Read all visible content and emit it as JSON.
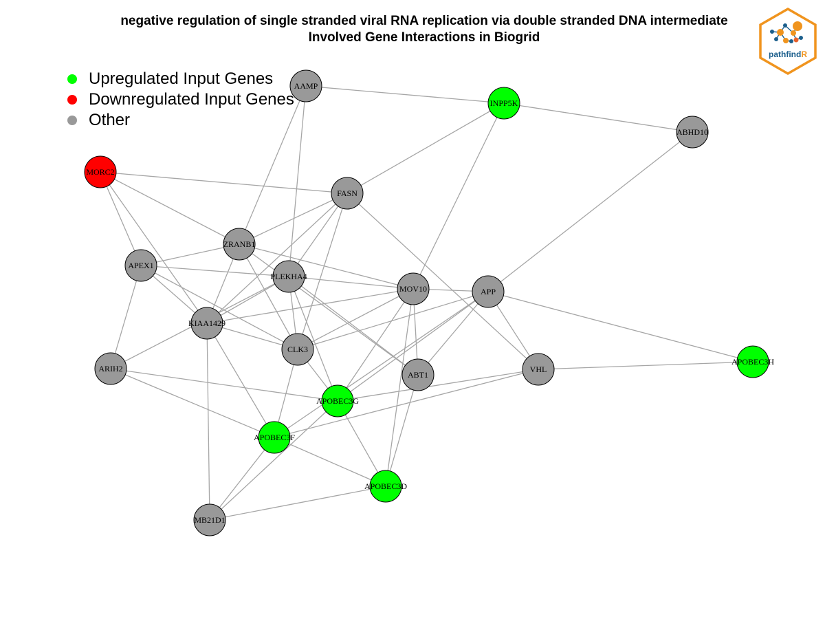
{
  "title": {
    "line1": "negative regulation of single stranded viral RNA replication via double stranded DNA intermediate",
    "line2": "Involved Gene Interactions in Biogrid"
  },
  "legend": [
    {
      "label": "Upregulated Input Genes",
      "color": "#00ff00"
    },
    {
      "label": "Downregulated Input Genes",
      "color": "#ff0000"
    },
    {
      "label": "Other",
      "color": "#999999"
    }
  ],
  "logo": {
    "text_main": "pathfind",
    "text_accent": "R",
    "border_color": "#f0941e",
    "accent_color": "#f0941e",
    "text_color": "#1c5f8c"
  },
  "colors": {
    "up": "#00ff00",
    "down": "#ff0000",
    "other": "#999999",
    "edge": "#a6a6a6"
  },
  "nodes": [
    {
      "id": "AAMP",
      "type": "other"
    },
    {
      "id": "INPP5K",
      "type": "up"
    },
    {
      "id": "ABHD10",
      "type": "other"
    },
    {
      "id": "MORC2",
      "type": "down"
    },
    {
      "id": "FASN",
      "type": "other"
    },
    {
      "id": "ZRANB1",
      "type": "other"
    },
    {
      "id": "APEX1",
      "type": "other"
    },
    {
      "id": "PLEKHA4",
      "type": "other"
    },
    {
      "id": "MOV10",
      "type": "other"
    },
    {
      "id": "APP",
      "type": "other"
    },
    {
      "id": "KIAA1429",
      "type": "other"
    },
    {
      "id": "CLK3",
      "type": "other"
    },
    {
      "id": "ARIH2",
      "type": "other"
    },
    {
      "id": "ABT1",
      "type": "other"
    },
    {
      "id": "VHL",
      "type": "other"
    },
    {
      "id": "APOBEC3H",
      "type": "up"
    },
    {
      "id": "APOBEC3G",
      "type": "up"
    },
    {
      "id": "APOBEC3F",
      "type": "up"
    },
    {
      "id": "APOBEC3D",
      "type": "up"
    },
    {
      "id": "MB21D1",
      "type": "other"
    }
  ],
  "edges": [
    [
      "AAMP",
      "INPP5K"
    ],
    [
      "AAMP",
      "ZRANB1"
    ],
    [
      "AAMP",
      "PLEKHA4"
    ],
    [
      "INPP5K",
      "ABHD10"
    ],
    [
      "INPP5K",
      "FASN"
    ],
    [
      "INPP5K",
      "MOV10"
    ],
    [
      "ABHD10",
      "APP"
    ],
    [
      "MORC2",
      "FASN"
    ],
    [
      "MORC2",
      "ZRANB1"
    ],
    [
      "MORC2",
      "APEX1"
    ],
    [
      "MORC2",
      "KIAA1429"
    ],
    [
      "FASN",
      "ZRANB1"
    ],
    [
      "FASN",
      "PLEKHA4"
    ],
    [
      "FASN",
      "KIAA1429"
    ],
    [
      "FASN",
      "CLK3"
    ],
    [
      "FASN",
      "VHL"
    ],
    [
      "ZRANB1",
      "APEX1"
    ],
    [
      "ZRANB1",
      "KIAA1429"
    ],
    [
      "ZRANB1",
      "CLK3"
    ],
    [
      "ZRANB1",
      "MOV10"
    ],
    [
      "ZRANB1",
      "ABT1"
    ],
    [
      "APEX1",
      "PLEKHA4"
    ],
    [
      "APEX1",
      "CLK3"
    ],
    [
      "APEX1",
      "ARIH2"
    ],
    [
      "APEX1",
      "KIAA1429"
    ],
    [
      "PLEKHA4",
      "MOV10"
    ],
    [
      "PLEKHA4",
      "KIAA1429"
    ],
    [
      "PLEKHA4",
      "CLK3"
    ],
    [
      "PLEKHA4",
      "ABT1"
    ],
    [
      "PLEKHA4",
      "APOBEC3G"
    ],
    [
      "PLEKHA4",
      "ARIH2"
    ],
    [
      "MOV10",
      "KIAA1429"
    ],
    [
      "MOV10",
      "CLK3"
    ],
    [
      "MOV10",
      "ABT1"
    ],
    [
      "MOV10",
      "APOBEC3G"
    ],
    [
      "MOV10",
      "APOBEC3D"
    ],
    [
      "MOV10",
      "APP"
    ],
    [
      "APP",
      "APOBEC3H"
    ],
    [
      "APP",
      "VHL"
    ],
    [
      "APP",
      "ABT1"
    ],
    [
      "APP",
      "APOBEC3F"
    ],
    [
      "APP",
      "CLK3"
    ],
    [
      "APP",
      "APOBEC3G"
    ],
    [
      "KIAA1429",
      "CLK3"
    ],
    [
      "KIAA1429",
      "APOBEC3F"
    ],
    [
      "KIAA1429",
      "MB21D1"
    ],
    [
      "CLK3",
      "APOBEC3F"
    ],
    [
      "CLK3",
      "APOBEC3G"
    ],
    [
      "ARIH2",
      "APOBEC3G"
    ],
    [
      "ARIH2",
      "APOBEC3F"
    ],
    [
      "ABT1",
      "APOBEC3D"
    ],
    [
      "VHL",
      "APOBEC3H"
    ],
    [
      "VHL",
      "APOBEC3F"
    ],
    [
      "VHL",
      "APOBEC3G"
    ],
    [
      "APOBEC3G",
      "APOBEC3D"
    ],
    [
      "APOBEC3G",
      "MB21D1"
    ],
    [
      "APOBEC3F",
      "APOBEC3D"
    ],
    [
      "APOBEC3F",
      "MB21D1"
    ],
    [
      "APOBEC3D",
      "MB21D1"
    ]
  ]
}
